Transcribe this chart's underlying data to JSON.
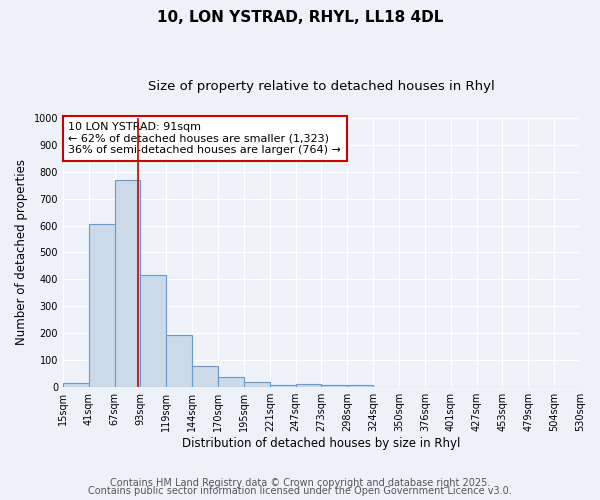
{
  "title1": "10, LON YSTRAD, RHYL, LL18 4DL",
  "title2": "Size of property relative to detached houses in Rhyl",
  "xlabel": "Distribution of detached houses by size in Rhyl",
  "ylabel": "Number of detached properties",
  "bar_edges": [
    15,
    41,
    67,
    93,
    119,
    145,
    171,
    197,
    223,
    249,
    275,
    301,
    327,
    353,
    379,
    405,
    431,
    457,
    483,
    509,
    535
  ],
  "bar_heights": [
    15,
    605,
    770,
    415,
    192,
    78,
    37,
    18,
    10,
    12,
    10,
    8,
    0,
    0,
    0,
    0,
    0,
    0,
    0,
    0
  ],
  "bar_color": "#ccd9e8",
  "bar_edge_color": "#6699cc",
  "bar_linewidth": 0.8,
  "vline_x": 91,
  "vline_color": "#cc0000",
  "vline_linewidth": 1.2,
  "annotation_text": "10 LON YSTRAD: 91sqm\n← 62% of detached houses are smaller (1,323)\n36% of semi-detached houses are larger (764) →",
  "annotation_box_color": "white",
  "annotation_box_edge": "#cc0000",
  "ylim": [
    0,
    1000
  ],
  "xlim": [
    15,
    535
  ],
  "tick_labels": [
    "15sqm",
    "41sqm",
    "67sqm",
    "93sqm",
    "119sqm",
    "144sqm",
    "170sqm",
    "195sqm",
    "221sqm",
    "247sqm",
    "273sqm",
    "298sqm",
    "324sqm",
    "350sqm",
    "376sqm",
    "401sqm",
    "427sqm",
    "453sqm",
    "479sqm",
    "504sqm",
    "530sqm"
  ],
  "background_color": "#eef2f8",
  "grid_color": "white",
  "footer_lines": [
    "Contains HM Land Registry data © Crown copyright and database right 2025.",
    "Contains public sector information licensed under the Open Government Licence v3.0."
  ],
  "title_fontsize": 11,
  "subtitle_fontsize": 9.5,
  "ylabel_fontsize": 8.5,
  "xlabel_fontsize": 8.5,
  "tick_fontsize": 7,
  "annotation_fontsize": 8,
  "footer_fontsize": 7
}
